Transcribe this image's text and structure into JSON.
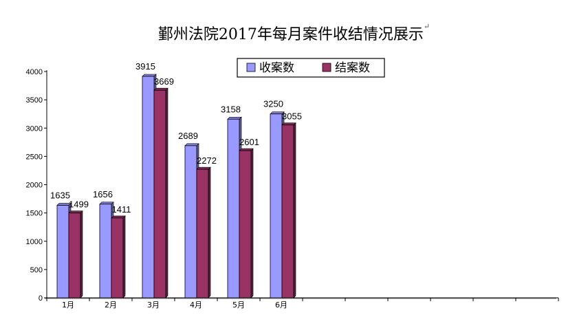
{
  "chart_data": {
    "type": "bar",
    "title": "鄞州法院2017年每月案件收结情况展示",
    "title_mark": "↵",
    "categories": [
      "1月",
      "2月",
      "3月",
      "4月",
      "5月",
      "6月"
    ],
    "slots_total": 12,
    "series": [
      {
        "name": "收案数",
        "values": [
          1635,
          1656,
          3915,
          2689,
          3158,
          3250
        ],
        "color": "#9999FF"
      },
      {
        "name": "结案数",
        "values": [
          1499,
          1411,
          3669,
          2272,
          2601,
          3055
        ],
        "color": "#993366"
      }
    ],
    "ylim": [
      0,
      4000
    ],
    "yticks": [
      0,
      500,
      1000,
      1500,
      2000,
      2500,
      3000,
      3500,
      4000
    ],
    "grid": false,
    "legend_position": "top-center",
    "three_d": true
  }
}
